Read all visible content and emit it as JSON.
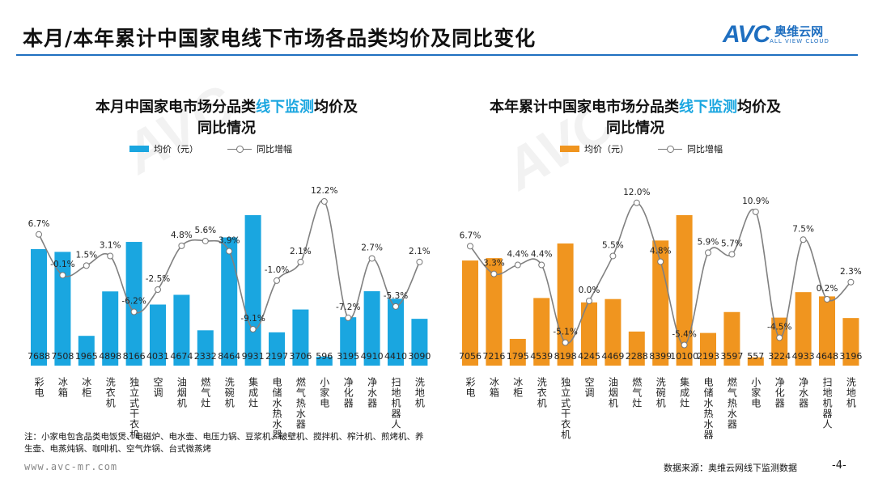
{
  "header": {
    "title": "本月/本年累计中国家电线下市场各品类均价及同比变化",
    "logo_text": "AVC",
    "logo_cn": "奥维云网",
    "logo_en": "ALL VIEW CLOUD"
  },
  "legend": {
    "bar": "均价（元）",
    "line": "同比增幅"
  },
  "colors": {
    "left_bar": "#1aa6e0",
    "right_bar": "#f0951f",
    "line": "#808080",
    "accent": "#1f6fc0"
  },
  "chart_data": [
    {
      "type": "bar",
      "title_pre": "本月中国家电市场分品类",
      "title_hl": "线下监测",
      "title_post": "均价及",
      "title_line2": "同比情况",
      "categories": [
        "彩电",
        "冰箱",
        "冰柜",
        "洗衣机",
        "独立式干衣机",
        "空调",
        "油烟机",
        "燃气灶",
        "洗碗机",
        "集成灶",
        "电储水热水器",
        "燃气热水器",
        "小家电",
        "净化器",
        "净水器",
        "扫地机器人",
        "洗地机"
      ],
      "series": [
        {
          "name": "均价（元）",
          "type": "bar",
          "values": [
            7688,
            7508,
            1965,
            4898,
            8166,
            4031,
            4674,
            2332,
            8464,
            9931,
            2197,
            3706,
            596,
            3195,
            4910,
            4410,
            3090
          ]
        },
        {
          "name": "同比增幅",
          "type": "line",
          "unit": "%",
          "values": [
            6.7,
            -0.1,
            1.5,
            3.1,
            -6.2,
            -2.5,
            4.8,
            5.6,
            3.9,
            -9.1,
            -1.0,
            2.1,
            12.2,
            -7.2,
            2.7,
            -5.3,
            2.1
          ]
        }
      ]
    },
    {
      "type": "bar",
      "title_pre": "本年累计中国家电市场分品类",
      "title_hl": "线下监测",
      "title_post": "均价及",
      "title_line2": "同比情况",
      "categories": [
        "彩电",
        "冰箱",
        "冰柜",
        "洗衣机",
        "独立式干衣机",
        "空调",
        "油烟机",
        "燃气灶",
        "洗碗机",
        "集成灶",
        "电储水热水器",
        "燃气热水器",
        "小家电",
        "净化器",
        "净水器",
        "扫地机器人",
        "洗地机"
      ],
      "series": [
        {
          "name": "均价（元）",
          "type": "bar",
          "values": [
            7056,
            7216,
            1795,
            4539,
            8198,
            4245,
            4469,
            2288,
            8399,
            10100,
            2193,
            3597,
            557,
            3224,
            4933,
            4648,
            3196
          ]
        },
        {
          "name": "同比增幅",
          "type": "line",
          "unit": "%",
          "values": [
            6.7,
            3.3,
            4.4,
            4.4,
            -5.1,
            0.0,
            5.5,
            12.0,
            4.8,
            -5.4,
            5.9,
            5.7,
            10.9,
            -4.5,
            7.5,
            0.2,
            2.3
          ]
        }
      ]
    }
  ],
  "footer": {
    "note": "注：小家电包含品类电饭煲、电磁炉、电水壶、电压力锅、豆浆机、破壁机、搅拌机、榨汁机、煎烤机、养生壶、电蒸炖锅、咖啡机、空气炸锅、台式微蒸烤",
    "url": "www.avc-mr.com",
    "source": "数据来源：奥维云网线下监测数据",
    "page": "-4-"
  }
}
